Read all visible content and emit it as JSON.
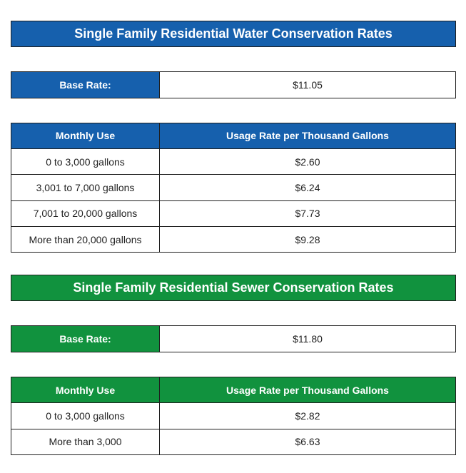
{
  "water": {
    "title": "Single Family Residential Water Conservation Rates",
    "base_rate_label": "Base Rate:",
    "base_rate_value": "$11.05",
    "columns": [
      "Monthly Use",
      "Usage Rate per Thousand Gallons"
    ],
    "rows": [
      {
        "use": "0 to 3,000 gallons",
        "rate": "$2.60"
      },
      {
        "use": "3,001 to 7,000 gallons",
        "rate": "$6.24"
      },
      {
        "use": "7,001 to 20,000 gallons",
        "rate": "$7.73"
      },
      {
        "use": "More than 20,000 gallons",
        "rate": "$9.28"
      }
    ]
  },
  "sewer": {
    "title": "Single Family Residential Sewer Conservation Rates",
    "base_rate_label": "Base Rate:",
    "base_rate_value": "$11.80",
    "columns": [
      "Monthly Use",
      "Usage Rate per Thousand Gallons"
    ],
    "rows": [
      {
        "use": "0 to 3,000 gallons",
        "rate": "$2.82"
      },
      {
        "use": "More than 3,000",
        "rate": "$6.63"
      }
    ]
  },
  "colors": {
    "water_header": "#1660ad",
    "sewer_header": "#11923e"
  }
}
